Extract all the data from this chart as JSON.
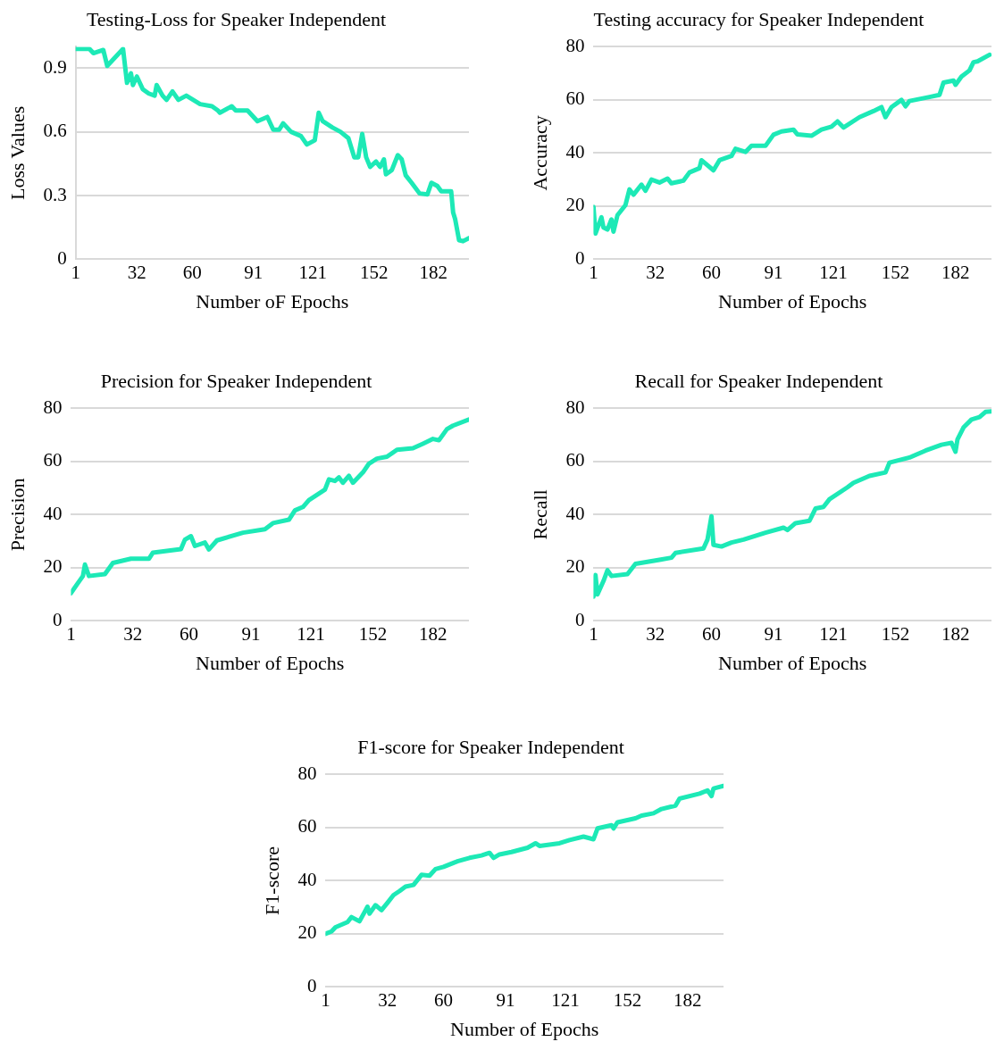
{
  "chart_data": [
    {
      "type": "line",
      "title": "Testing-Loss for Speaker Independent",
      "xlabel": "Number oF Epochs",
      "ylabel": "Loss Values",
      "color": "#1de9b6",
      "marker": "none",
      "grid": "y",
      "xlim": [
        1,
        200
      ],
      "xticks": [
        1,
        32,
        60,
        91,
        121,
        152,
        182
      ],
      "ylim": [
        0,
        1
      ],
      "yticks": [
        0,
        0.3,
        0.6,
        0.9
      ],
      "x": [
        1,
        8,
        10,
        15,
        17,
        25,
        27,
        29,
        30,
        32,
        35,
        38,
        41,
        42,
        45,
        47,
        50,
        53,
        57,
        64,
        70,
        73,
        74,
        80,
        82,
        88,
        93,
        98,
        101,
        104,
        106,
        110,
        115,
        118,
        122,
        124,
        126,
        131,
        135,
        139,
        142,
        144,
        146,
        148,
        150,
        153,
        155,
        157,
        158,
        161,
        164,
        166,
        168,
        171,
        175,
        179,
        181,
        184,
        186,
        191,
        192,
        193,
        195,
        197,
        200
      ],
      "values": [
        0.99,
        0.99,
        0.97,
        0.985,
        0.91,
        0.99,
        0.83,
        0.875,
        0.82,
        0.86,
        0.8,
        0.78,
        0.77,
        0.82,
        0.77,
        0.75,
        0.79,
        0.75,
        0.77,
        0.73,
        0.72,
        0.7,
        0.69,
        0.72,
        0.7,
        0.7,
        0.65,
        0.67,
        0.61,
        0.61,
        0.64,
        0.6,
        0.58,
        0.54,
        0.56,
        0.69,
        0.65,
        0.62,
        0.6,
        0.57,
        0.48,
        0.48,
        0.59,
        0.48,
        0.435,
        0.46,
        0.435,
        0.47,
        0.4,
        0.42,
        0.49,
        0.47,
        0.395,
        0.36,
        0.31,
        0.305,
        0.36,
        0.345,
        0.32,
        0.32,
        0.22,
        0.19,
        0.09,
        0.085,
        0.1
      ]
    },
    {
      "type": "line",
      "title": "Testing accuracy for Speaker Independent",
      "xlabel": "Number of Epochs",
      "ylabel": "Accuracy",
      "color": "#1de9b6",
      "marker": "none",
      "grid": "y",
      "xlim": [
        1,
        200
      ],
      "xticks": [
        1,
        32,
        60,
        91,
        121,
        152,
        182
      ],
      "ylim": [
        0,
        80
      ],
      "yticks": [
        0,
        20,
        40,
        60,
        80
      ],
      "x": [
        1,
        2,
        5,
        6,
        8,
        10,
        11,
        13,
        17,
        19,
        21,
        25,
        27,
        30,
        34,
        38,
        40,
        46,
        49,
        54,
        55,
        61,
        64,
        70,
        72,
        77,
        80,
        87,
        91,
        95,
        101,
        103,
        110,
        115,
        120,
        123,
        126,
        134,
        141,
        145,
        147,
        150,
        155,
        157,
        159,
        169,
        174,
        176,
        181,
        182,
        185,
        189,
        191,
        193,
        199
      ],
      "values": [
        19.7,
        9.7,
        15.8,
        12,
        11.2,
        15,
        10.4,
        16.6,
        20.4,
        26.3,
        24.3,
        28.1,
        25.8,
        30,
        28.9,
        30.4,
        28.6,
        29.6,
        32.7,
        34.3,
        37.3,
        33.5,
        37.3,
        38.9,
        41.6,
        40.4,
        42.7,
        42.7,
        46.9,
        48.1,
        48.8,
        47,
        46.5,
        48.8,
        49.9,
        51.9,
        49.6,
        53.5,
        55.8,
        57.3,
        53.5,
        57.3,
        60,
        57.6,
        59.6,
        61.1,
        61.9,
        66.5,
        67.3,
        65.7,
        68.8,
        71.1,
        74.2,
        74.5,
        77
      ]
    },
    {
      "type": "line",
      "title": "Precision for Speaker Independent",
      "xlabel": "Number of Epochs",
      "ylabel": "Precision",
      "color": "#1de9b6",
      "marker": "none",
      "grid": "y",
      "xlim": [
        1,
        200
      ],
      "xticks": [
        1,
        32,
        60,
        91,
        121,
        152,
        182
      ],
      "ylim": [
        0,
        80
      ],
      "yticks": [
        0,
        20,
        40,
        60,
        80
      ],
      "x": [
        1,
        4,
        7,
        8,
        10,
        18,
        22,
        31,
        40,
        42,
        56,
        58,
        61,
        63,
        68,
        70,
        74,
        87,
        98,
        102,
        110,
        113,
        117,
        120,
        128,
        130,
        133,
        135,
        137,
        140,
        142,
        147,
        150,
        154,
        159,
        164,
        172,
        177,
        182,
        185,
        189,
        192,
        200
      ],
      "values": [
        10.4,
        13.7,
        16.9,
        21.2,
        16.9,
        17.6,
        21.8,
        23.4,
        23.4,
        25.7,
        27,
        30.6,
        31.9,
        28.2,
        29.5,
        26.9,
        30.3,
        33.2,
        34.5,
        36.8,
        38.1,
        41.6,
        42.9,
        45.5,
        49.4,
        53.3,
        52.7,
        54,
        52,
        54.6,
        52,
        55.9,
        59.2,
        61.1,
        61.8,
        64.4,
        65,
        66.7,
        68.5,
        68,
        72.2,
        73.5,
        75.8
      ]
    },
    {
      "type": "line",
      "title": "Recall for Speaker Independent",
      "xlabel": "Number of Epochs",
      "ylabel": "Recall",
      "color": "#1de9b6",
      "marker": "none",
      "grid": "y",
      "xlim": [
        1,
        200
      ],
      "xticks": [
        1,
        32,
        60,
        91,
        121,
        152,
        182
      ],
      "ylim": [
        0,
        80
      ],
      "yticks": [
        0,
        20,
        40,
        60,
        80
      ],
      "x": [
        1,
        2,
        3,
        6,
        8,
        10,
        18,
        22,
        34,
        40,
        42,
        56,
        58,
        60,
        61,
        65,
        70,
        76,
        87,
        96,
        98,
        102,
        109,
        112,
        116,
        119,
        128,
        131,
        139,
        147,
        149,
        159,
        167,
        175,
        180,
        182,
        183,
        186,
        190,
        194,
        197,
        200
      ],
      "values": [
        9.1,
        17.3,
        10,
        15,
        19.1,
        16.9,
        17.6,
        21.5,
        23,
        23.8,
        25.6,
        27.3,
        30.6,
        39.4,
        28.6,
        28,
        29.5,
        30.6,
        33.2,
        35.1,
        34.2,
        36.8,
        37.7,
        42.3,
        42.9,
        45.8,
        50.3,
        52,
        54.6,
        55.9,
        59.6,
        61.5,
        64.1,
        66.3,
        67,
        63.7,
        68.3,
        72.8,
        75.8,
        76.7,
        78.7,
        78.9
      ]
    },
    {
      "type": "line",
      "title": "F1-score for Speaker Independent",
      "xlabel": "Number of Epochs",
      "ylabel": "F1-score",
      "color": "#1de9b6",
      "marker": "none",
      "grid": "y",
      "xlim": [
        1,
        200
      ],
      "xticks": [
        1,
        32,
        60,
        91,
        121,
        152,
        182
      ],
      "ylim": [
        0,
        80
      ],
      "yticks": [
        0,
        20,
        40,
        60,
        80
      ],
      "x": [
        1,
        4,
        6,
        12,
        14,
        18,
        22,
        23,
        26,
        29,
        32,
        35,
        38,
        41,
        45,
        49,
        53,
        56,
        60,
        67,
        73,
        79,
        83,
        85,
        88,
        94,
        102,
        106,
        108,
        118,
        123,
        130,
        135,
        137,
        144,
        145,
        147,
        156,
        159,
        165,
        169,
        176,
        178,
        188,
        192,
        194,
        195,
        200
      ],
      "values": [
        20,
        20.9,
        22.5,
        24.4,
        26.3,
        24.7,
        30.2,
        27.6,
        30.8,
        28.9,
        31.7,
        34.6,
        36.1,
        37.8,
        38.4,
        42.2,
        41.9,
        44.4,
        45.2,
        47.3,
        48.6,
        49.5,
        50.5,
        48.6,
        49.9,
        50.8,
        52.4,
        54.1,
        53.1,
        54.1,
        55.3,
        56.6,
        55.6,
        59.7,
        60.9,
        59.7,
        62,
        63.5,
        64.5,
        65.4,
        67,
        68.3,
        70.9,
        72.8,
        74,
        71.9,
        74.7,
        75.7
      ]
    }
  ]
}
